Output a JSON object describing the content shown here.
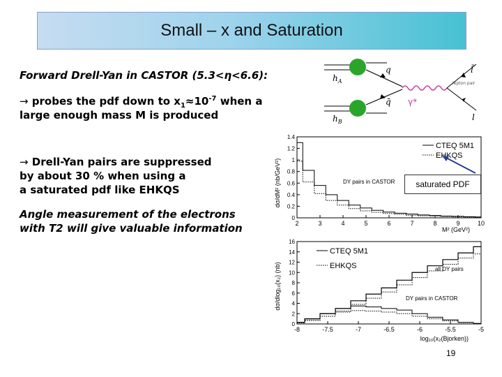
{
  "slide": {
    "title": "Small – x and Saturation",
    "page_number": "19"
  },
  "text": {
    "line1": "Forward Drell-Yan in CASTOR (5.3<η<6.6):",
    "bullet1_arrow": "→",
    "bullet1_a": " probes the pdf down to x",
    "bullet1_sub": "1",
    "bullet1_approx": "≈10",
    "bullet1_sup": "-7",
    "bullet1_b": " when a",
    "bullet1_line2": "large enough mass M is produced",
    "bullet2_arrow": "→",
    "bullet2_line1": " Drell-Yan pairs are suppressed",
    "bullet2_line2": "by about 30 % when using a",
    "bullet2_line3": "a saturated pdf like EHKQS",
    "angle_line1": "Angle measurement of the electrons",
    "angle_line2": "with T2 will give valuable information"
  },
  "feynman": {
    "h_a": "h",
    "h_a_sub": "A",
    "h_b": "h",
    "h_b_sub": "B",
    "q_top": "q",
    "q_bottom": "q̄",
    "gamma": "γ*",
    "l_bar": "l̄",
    "l": "l",
    "lepton_note": "lepton pair"
  },
  "callout": {
    "label": "saturated PDF"
  },
  "chart_data": [
    {
      "type": "line",
      "title": "",
      "xlabel": "M² (GeV²)",
      "ylabel": "dσ/dM² (nb/GeV²)",
      "xlim": [
        2,
        10
      ],
      "ylim": [
        0,
        1.4
      ],
      "x_ticks": [
        "2",
        "3",
        "4",
        "5",
        "6",
        "7",
        "8",
        "9",
        "10"
      ],
      "y_ticks": [
        "0",
        "0.2",
        "0.4",
        "0.6",
        "0.8",
        "1",
        "1.2",
        "1.4"
      ],
      "legend": [
        "CTEQ 5M1",
        "EHKQS"
      ],
      "annotation": "DY pairs in CASTOR",
      "series": [
        {
          "name": "CTEQ 5M1",
          "x": [
            2,
            2.5,
            3,
            3.5,
            4,
            4.5,
            5,
            5.5,
            6,
            6.5,
            7,
            7.5,
            8,
            8.5,
            9,
            9.5,
            10
          ],
          "values": [
            1.3,
            0.82,
            0.56,
            0.4,
            0.3,
            0.22,
            0.17,
            0.13,
            0.1,
            0.08,
            0.065,
            0.05,
            0.04,
            0.03,
            0.025,
            0.02,
            0.015
          ]
        },
        {
          "name": "EHKQS",
          "x": [
            2,
            2.5,
            3,
            3.5,
            4,
            4.5,
            5,
            5.5,
            6,
            6.5,
            7,
            7.5,
            8,
            8.5,
            9,
            9.5,
            10
          ],
          "values": [
            0.98,
            0.62,
            0.42,
            0.3,
            0.22,
            0.16,
            0.12,
            0.095,
            0.075,
            0.06,
            0.045,
            0.035,
            0.028,
            0.022,
            0.017,
            0.013,
            0.01
          ]
        }
      ]
    },
    {
      "type": "line",
      "title": "",
      "xlabel": "log₁₀(x₂(Bjorken))",
      "ylabel": "dσ/dlog₁₀(x₂) (nb)",
      "xlim": [
        -8,
        -5
      ],
      "ylim": [
        0,
        16
      ],
      "x_ticks": [
        "-8",
        "-7.5",
        "-7",
        "-6.5",
        "-6",
        "-5.5",
        "-5"
      ],
      "y_ticks": [
        "0",
        "2",
        "4",
        "6",
        "8",
        "10",
        "12",
        "14",
        "16"
      ],
      "legend": [
        "CTEQ 5M1",
        "EHKQS"
      ],
      "annotations": [
        "all DY pairs",
        "DY pairs in CASTOR"
      ],
      "series": [
        {
          "name": "CTEQ 5M1 (all DY pairs)",
          "x": [
            -8,
            -7.75,
            -7.5,
            -7.25,
            -7,
            -6.75,
            -6.5,
            -6.25,
            -6,
            -5.75,
            -5.5,
            -5.25,
            -5
          ],
          "values": [
            0.3,
            1,
            2,
            3,
            4.5,
            5.8,
            7,
            8.5,
            10,
            11.3,
            12.5,
            13.8,
            15
          ]
        },
        {
          "name": "EHKQS (all DY pairs)",
          "x": [
            -8,
            -7.75,
            -7.5,
            -7.25,
            -7,
            -6.75,
            -6.5,
            -6.25,
            -6,
            -5.75,
            -5.5,
            -5.25,
            -5
          ],
          "values": [
            0.2,
            0.7,
            1.5,
            2.5,
            3.8,
            5,
            6.2,
            7.6,
            9,
            10.3,
            11.6,
            12.8,
            13.6
          ]
        },
        {
          "name": "CTEQ 5M1 (DY pairs in CASTOR)",
          "x": [
            -8,
            -7.75,
            -7.5,
            -7.25,
            -7,
            -6.75,
            -6.5,
            -6.25,
            -6,
            -5.75,
            -5.5,
            -5.25,
            -5
          ],
          "values": [
            0.3,
            1,
            2,
            3,
            3.5,
            3.3,
            3,
            2.7,
            2,
            1.3,
            0.8,
            0.3,
            0.1
          ]
        },
        {
          "name": "EHKQS (DY pairs in CASTOR)",
          "x": [
            -8,
            -7.75,
            -7.5,
            -7.25,
            -7,
            -6.75,
            -6.5,
            -6.25,
            -6,
            -5.75,
            -5.5,
            -5.25,
            -5
          ],
          "values": [
            0.2,
            0.7,
            1.5,
            2.3,
            2.6,
            2.5,
            2.3,
            2,
            1.5,
            1,
            0.6,
            0.25,
            0.08
          ]
        }
      ]
    }
  ]
}
